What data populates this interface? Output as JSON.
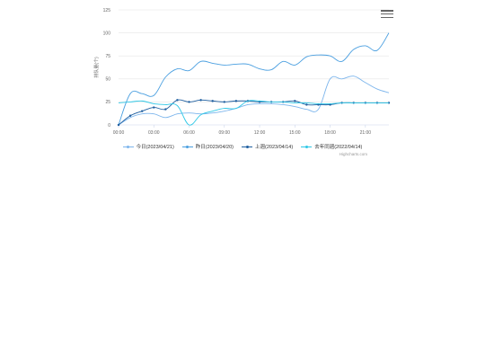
{
  "chart_data": {
    "type": "line",
    "ytitle": "排队量(个)",
    "ylim": [
      0,
      125
    ],
    "yticks": [
      "0",
      "25",
      "50",
      "75",
      "100",
      "125"
    ],
    "xticks": [
      "00:00",
      "03:00",
      "06:00",
      "09:00",
      "12:00",
      "15:00",
      "18:00",
      "21:00"
    ],
    "x_range": [
      0,
      23
    ],
    "grid": true,
    "legend_position": "bottom",
    "series": [
      {
        "name": "今日(2023/04/21)",
        "color": "#7cb5ec",
        "markers": false,
        "values": [
          0,
          8,
          12,
          12,
          8,
          12,
          13,
          12,
          13,
          15,
          18,
          22,
          23,
          23,
          22,
          20,
          17,
          17,
          50,
          50,
          53,
          46,
          39,
          35
        ]
      },
      {
        "name": "昨日(2023/04/20)",
        "color": "#4a9fe0",
        "markers": false,
        "values": [
          0,
          34,
          34,
          32,
          52,
          61,
          59,
          69,
          67,
          65,
          66,
          66,
          61,
          60,
          69,
          65,
          74,
          76,
          75,
          69,
          82,
          86,
          81,
          100
        ]
      },
      {
        "name": "上週(2023/04/14)",
        "color": "#1f5fa0",
        "markers": true,
        "values": [
          0,
          10,
          15,
          19,
          17,
          27,
          25,
          27,
          26,
          25,
          26,
          26,
          25,
          25,
          25,
          26,
          22,
          22,
          22,
          24,
          24,
          24,
          24,
          24
        ]
      },
      {
        "name": "去年同週(2022/04/14)",
        "color": "#2ec7e6",
        "markers": false,
        "values": [
          24,
          25,
          26,
          23,
          22,
          21,
          0,
          11,
          15,
          18,
          18,
          26,
          26,
          25,
          25,
          24,
          24,
          23,
          23,
          24,
          24,
          24,
          24,
          24
        ]
      }
    ]
  },
  "credits": "Highcharts.com",
  "icons": {
    "menu": "hamburger-menu-icon"
  }
}
